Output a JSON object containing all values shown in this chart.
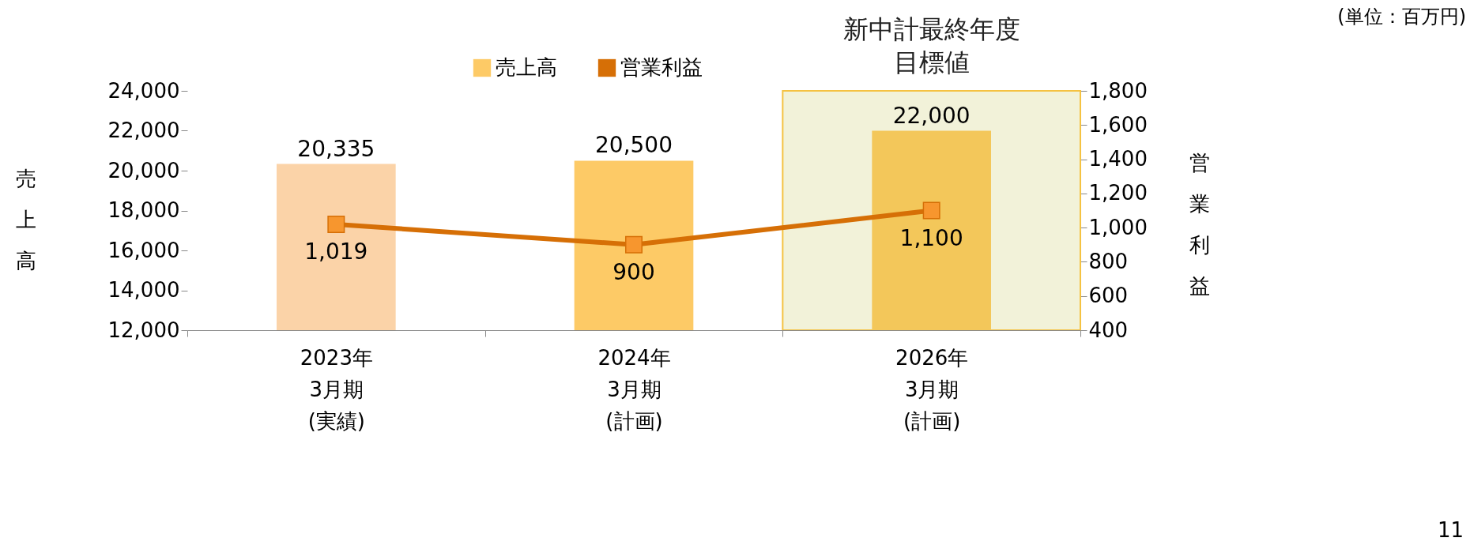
{
  "chart_data": {
    "type": "bar",
    "categories": [
      "2023年\n3月期\n(実績)",
      "2024年\n3月期\n(計画)",
      "2026年\n3月期\n(計画)"
    ],
    "series": [
      {
        "name": "売上高",
        "color": "#fdca66",
        "colors": [
          "#fbd3a8",
          "#fdca66",
          "#f3c75a"
        ],
        "values": [
          20335,
          20500,
          22000
        ],
        "value_labels": [
          "20,335",
          "20,500",
          "22,000"
        ]
      },
      {
        "name": "営業利益",
        "type": "line",
        "axis": "y2",
        "color": "#d66f06",
        "values": [
          1019,
          900,
          1100
        ],
        "value_labels": [
          "1,019",
          "900",
          "1,100"
        ]
      }
    ],
    "ylabel": "売上高",
    "y2label": "営業利益",
    "ylim": [
      12000,
      24000
    ],
    "yticks": [
      {
        "value": 12000,
        "label": "12,000"
      },
      {
        "value": 14000,
        "label": "14,000"
      },
      {
        "value": 16000,
        "label": "16,000"
      },
      {
        "value": 18000,
        "label": "18,000"
      },
      {
        "value": 20000,
        "label": "20,000"
      },
      {
        "value": 22000,
        "label": "22,000"
      },
      {
        "value": 24000,
        "label": "24,000"
      }
    ],
    "y2lim": [
      400,
      1800
    ],
    "y2ticks": [
      400,
      600,
      800,
      {
        "value": 1000,
        "label": "1,000"
      },
      {
        "value": 1200,
        "label": "1,200"
      },
      {
        "value": 1400,
        "label": "1,400"
      },
      {
        "value": 1600,
        "label": "1,600"
      },
      {
        "value": 1800,
        "label": "1,800"
      }
    ],
    "bands": [
      {
        "axis": "x",
        "from": "2026年\n3月期\n(計画)",
        "to": "2026年\n3月期\n(計画)",
        "label": "新中計最終年度目標値",
        "color": "#f2f2d9"
      }
    ],
    "annotations": [
      "(単位：百万円)",
      "11"
    ],
    "marker": "square",
    "legend": "top",
    "grid": false
  }
}
